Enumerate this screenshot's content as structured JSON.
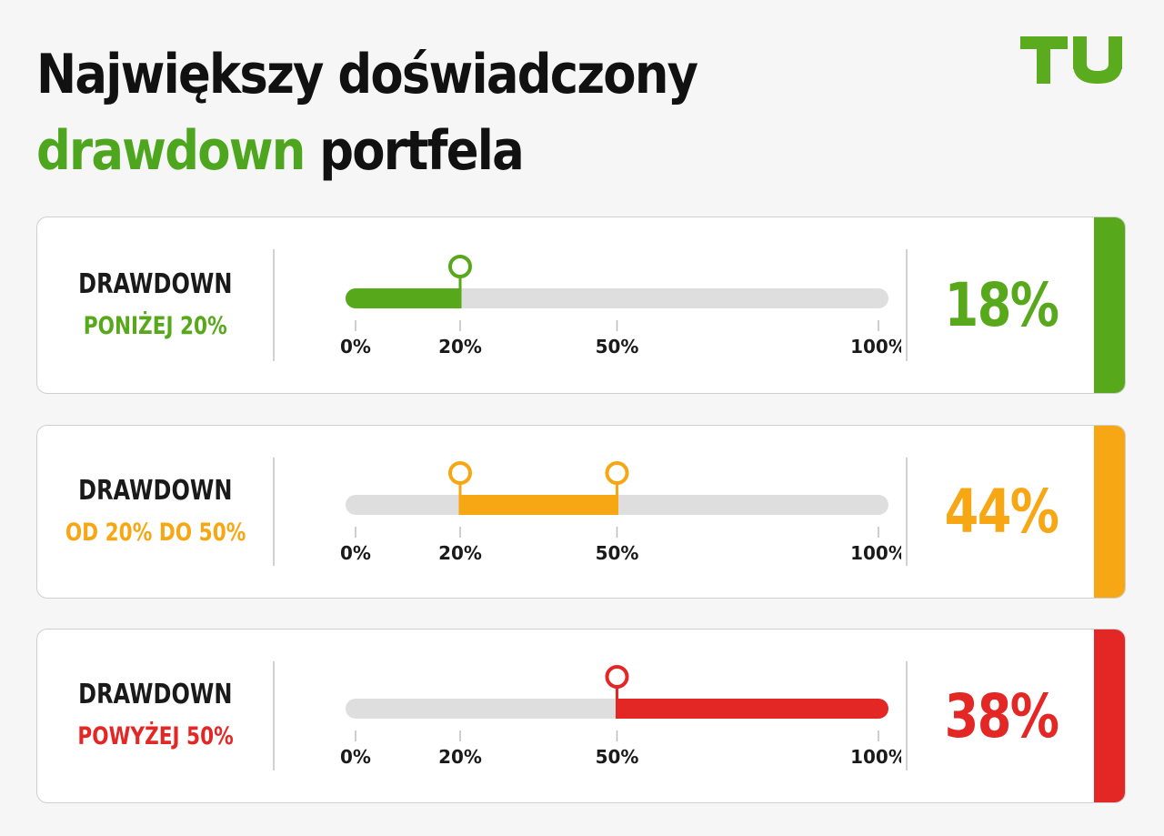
{
  "title": {
    "line1": "Największy doświadczony",
    "line2_highlight": "drawdown",
    "line2_rest": "portfela"
  },
  "logo": {
    "text": "TU",
    "color": "#5aab1e"
  },
  "colors": {
    "track": "#dedede",
    "green": "#57a81b",
    "orange": "#f7a714",
    "red": "#e32725"
  },
  "chart_data": {
    "type": "bar",
    "axis_ticks": [
      "0%",
      "20%",
      "50%",
      "100%"
    ],
    "tick_values": [
      0,
      20,
      50,
      100
    ],
    "xlim": [
      0,
      100
    ],
    "rows": [
      {
        "label": "DRAWDOWN",
        "category": "PONIŻEJ 20%",
        "range": [
          0,
          20
        ],
        "markers": [
          20
        ],
        "value": 18,
        "value_text": "18%",
        "color": "#57a81b"
      },
      {
        "label": "DRAWDOWN",
        "category": "OD 20% DO 50%",
        "range": [
          20,
          50
        ],
        "markers": [
          20,
          50
        ],
        "value": 44,
        "value_text": "44%",
        "color": "#f7a714"
      },
      {
        "label": "DRAWDOWN",
        "category": "POWYŻEJ 50%",
        "range": [
          50,
          100
        ],
        "markers": [
          50
        ],
        "value": 38,
        "value_text": "38%",
        "color": "#e32725"
      }
    ]
  }
}
